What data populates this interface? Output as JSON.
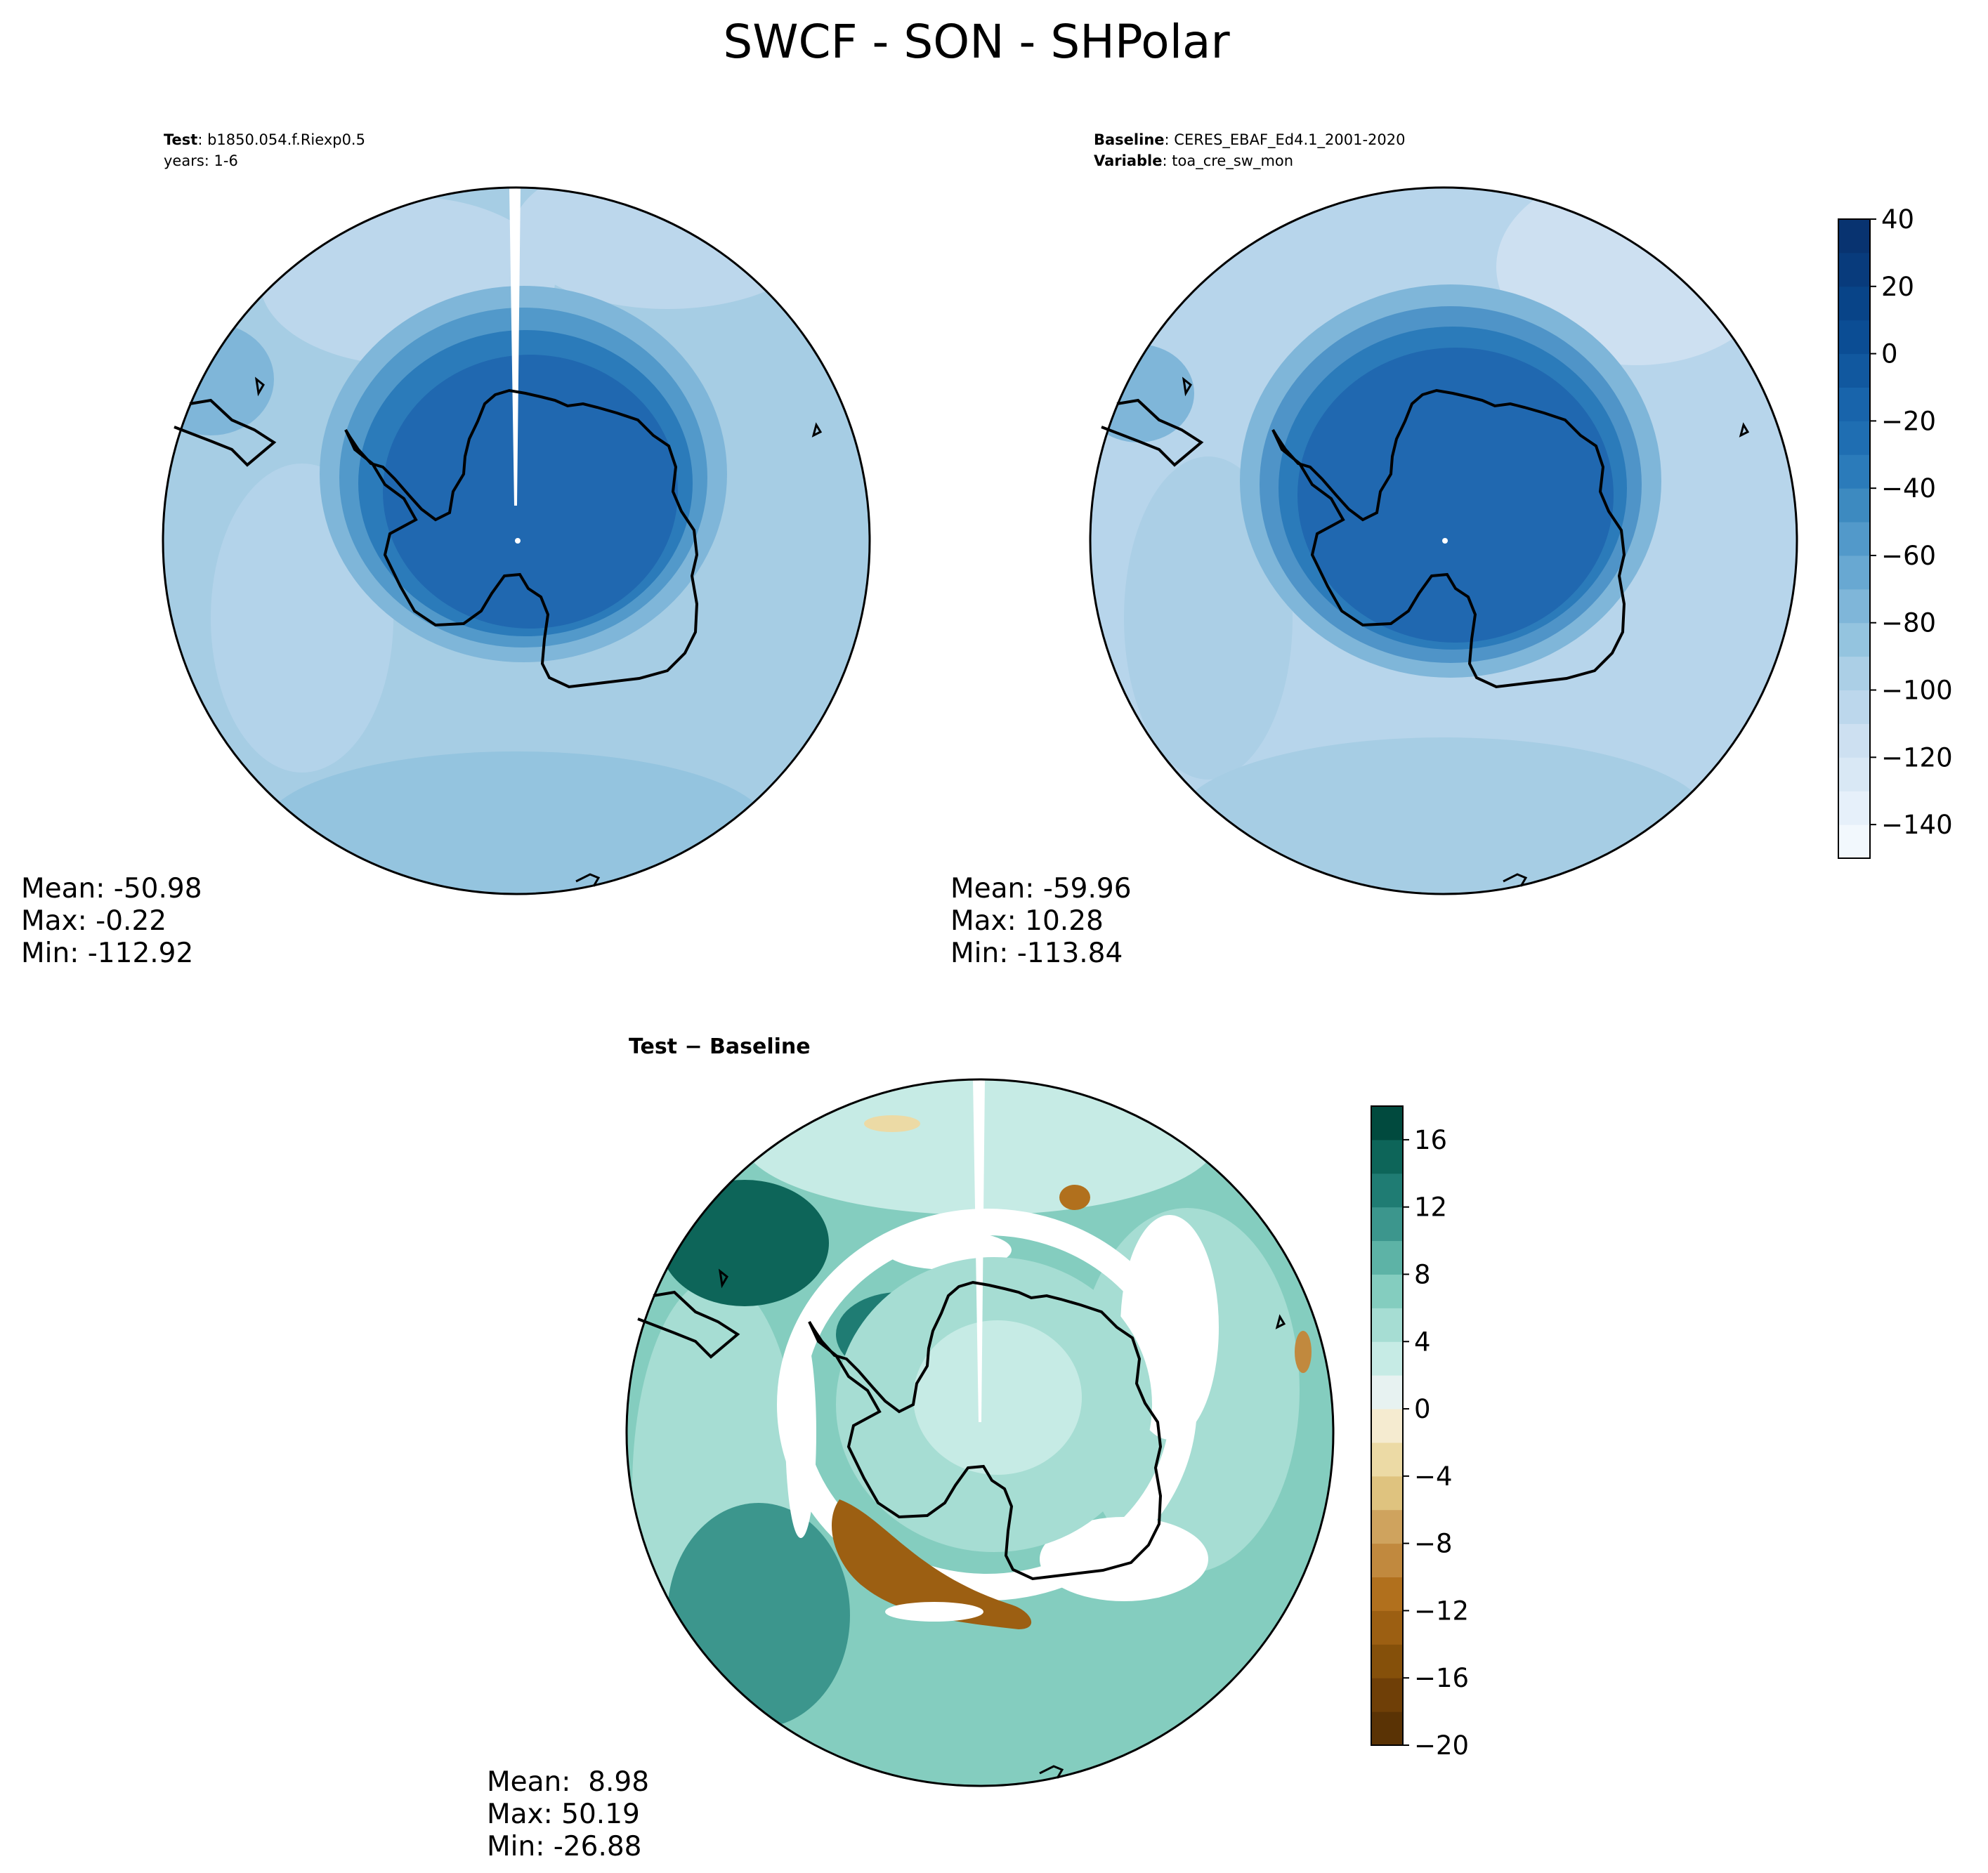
{
  "chart_data": {
    "type": "polar_contour_map",
    "title": "SWCF - SON - SHPolar",
    "panels": [
      {
        "id": "test",
        "labels": [
          {
            "key": "Test",
            "value": "b1850.054.f.Riexp0.5"
          },
          {
            "key": "",
            "value": "years: 1-6"
          }
        ],
        "stats": {
          "mean": "-50.98",
          "max": "-0.22",
          "min": "-112.92"
        },
        "stats_text": [
          "Mean: -50.98",
          "Max: -0.22",
          "Min: -112.92"
        ],
        "colormap": "Blues_r"
      },
      {
        "id": "baseline",
        "labels": [
          {
            "key": "Baseline",
            "value": "CERES_EBAF_Ed4.1_2001-2020"
          },
          {
            "key": "Variable",
            "value": "toa_cre_sw_mon"
          }
        ],
        "stats": {
          "mean": "-59.96",
          "max": "10.28",
          "min": "-113.84"
        },
        "stats_text": [
          "Mean: -59.96",
          "Max: 10.28",
          "Min: -113.84"
        ],
        "colormap": "Blues_r"
      },
      {
        "id": "diff",
        "labels": [
          {
            "key": "Test − Baseline",
            "value": ""
          }
        ],
        "stats": {
          "mean": "8.98",
          "max": "50.19",
          "min": "-26.88"
        },
        "stats_text": [
          "Mean:  8.98",
          "Max: 50.19",
          "Min: -26.88"
        ],
        "colormap": "BrBG"
      }
    ],
    "colorbars": [
      {
        "id": "main",
        "range": [
          -150,
          40
        ],
        "ticks": [
          40,
          20,
          0,
          -20,
          -40,
          -60,
          -80,
          -100,
          -120,
          -140
        ],
        "tick_labels": [
          "40",
          "20",
          "0",
          "−20",
          "−40",
          "−60",
          "−80",
          "−100",
          "−120",
          "−140"
        ],
        "levels": [
          -150,
          -140,
          -130,
          -120,
          -110,
          -100,
          -90,
          -80,
          -70,
          -60,
          -50,
          -40,
          -30,
          -20,
          -10,
          0,
          10,
          20,
          30,
          40
        ],
        "colors": [
          "#f2f8fd",
          "#e6f0fa",
          "#d9e8f5",
          "#cde0f1",
          "#bcd7ec",
          "#abcfe6",
          "#94c4df",
          "#7fb6d9",
          "#68a8d2",
          "#5299ca",
          "#3d8ac0",
          "#2b7bba",
          "#1f6eb2",
          "#1864ab",
          "#11589f",
          "#0b4d94",
          "#084488",
          "#083b7c",
          "#083370"
        ]
      },
      {
        "id": "diff",
        "range": [
          -20,
          18
        ],
        "ticks": [
          16,
          12,
          8,
          4,
          0,
          -4,
          -8,
          -12,
          -16,
          -20
        ],
        "tick_labels": [
          "16",
          "12",
          "8",
          "4",
          "0",
          "−4",
          "−8",
          "−12",
          "−16",
          "−20"
        ],
        "levels": [
          -20,
          -18,
          -16,
          -14,
          -12,
          -10,
          -8,
          -6,
          -4,
          -2,
          0,
          2,
          4,
          6,
          8,
          10,
          12,
          14,
          16,
          18
        ],
        "colors": [
          "#5a3305",
          "#6f3f07",
          "#85500a",
          "#9c5f12",
          "#b1701d",
          "#c1893e",
          "#cfa35e",
          "#dfc37f",
          "#ecdaa5",
          "#f5ebd0",
          "#e7f2f1",
          "#c6ebe5",
          "#a6ddd3",
          "#84cdbf",
          "#5db3a6",
          "#3c968d",
          "#1f7c73",
          "#0d6559",
          "#014a3e"
        ]
      }
    ]
  },
  "colors": {
    "land_outline": "#000000",
    "blue_ocean": "#a6cde4",
    "blue_ring": "#5aa0cd",
    "blue_core": "#2068b0",
    "diff_ocean": "#8fd1c5"
  }
}
